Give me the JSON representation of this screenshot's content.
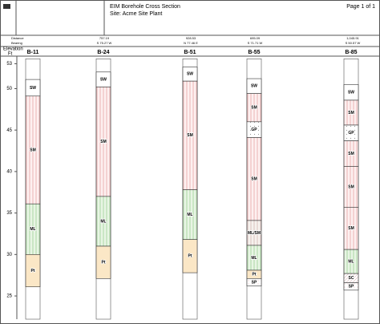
{
  "header": {
    "title": "EIM Borehole Cross Section",
    "site": "Site: Acme Site Plant",
    "page": "Page 1 of 1"
  },
  "row_labels": [
    "Distance",
    "Bearing"
  ],
  "segments": [
    {
      "distance": "757.19",
      "bearing": "S 75.27 W"
    },
    {
      "distance": "928.53",
      "bearing": "N 77.46 E"
    },
    {
      "distance": "695.09",
      "bearing": "S 71.71 W"
    },
    {
      "distance": "1,045.91",
      "bearing": "S 50.57 W"
    }
  ],
  "axis": {
    "label_line1": "Elevation",
    "label_line2": "Ft",
    "ylim": [
      22.2,
      53.4
    ],
    "yticks": [
      25,
      30,
      35,
      40,
      45,
      50,
      53
    ]
  },
  "boreholes": [
    {
      "name": "B-11",
      "layers": [
        {
          "soil": "SW",
          "top": 51.1,
          "bottom": 49.1
        },
        {
          "soil": "SM",
          "top": 49.1,
          "bottom": 36.1
        },
        {
          "soil": "ML",
          "top": 36.1,
          "bottom": 30.0
        },
        {
          "soil": "Pt",
          "top": 30.0,
          "bottom": 26.1
        }
      ]
    },
    {
      "name": "B-24",
      "layers": [
        {
          "soil": "SW",
          "top": 52.0,
          "bottom": 50.2
        },
        {
          "soil": "SM",
          "top": 50.2,
          "bottom": 37.0
        },
        {
          "soil": "ML",
          "top": 37.0,
          "bottom": 31.0
        },
        {
          "soil": "Pt",
          "top": 31.0,
          "bottom": 27.1
        }
      ]
    },
    {
      "name": "B-51",
      "layers": [
        {
          "soil": "SW",
          "top": 52.6,
          "bottom": 50.9
        },
        {
          "soil": "SM",
          "top": 50.9,
          "bottom": 37.8
        },
        {
          "soil": "ML",
          "top": 37.8,
          "bottom": 31.8
        },
        {
          "soil": "Pt",
          "top": 31.8,
          "bottom": 27.8
        }
      ]
    },
    {
      "name": "B-55",
      "layers": [
        {
          "soil": "SW",
          "top": 51.2,
          "bottom": 49.4
        },
        {
          "soil": "SM",
          "top": 49.4,
          "bottom": 46.0
        },
        {
          "soil": "GP",
          "top": 46.0,
          "bottom": 44.1
        },
        {
          "soil": "SM",
          "top": 44.1,
          "bottom": 34.1
        },
        {
          "soil": "ML/SM",
          "top": 34.1,
          "bottom": 31.1
        },
        {
          "soil": "ML",
          "top": 31.1,
          "bottom": 28.1
        },
        {
          "soil": "Pt",
          "top": 28.1,
          "bottom": 27.1
        },
        {
          "soil": "SP",
          "top": 27.1,
          "bottom": 26.2
        }
      ]
    },
    {
      "name": "B-85",
      "layers": [
        {
          "soil": "SW",
          "top": 50.5,
          "bottom": 48.6
        },
        {
          "soil": "SM",
          "top": 48.6,
          "bottom": 45.6
        },
        {
          "soil": "GP",
          "top": 45.6,
          "bottom": 43.7
        },
        {
          "soil": "SM",
          "top": 43.7,
          "bottom": 40.6
        },
        {
          "soil": "SM",
          "top": 40.6,
          "bottom": 35.7
        },
        {
          "soil": "SM",
          "top": 35.7,
          "bottom": 30.6
        },
        {
          "soil": "ML",
          "top": 30.6,
          "bottom": 27.7
        },
        {
          "soil": "SC",
          "top": 27.7,
          "bottom": 26.6
        },
        {
          "soil": "SP",
          "top": 26.6,
          "bottom": 25.7
        }
      ]
    }
  ]
}
